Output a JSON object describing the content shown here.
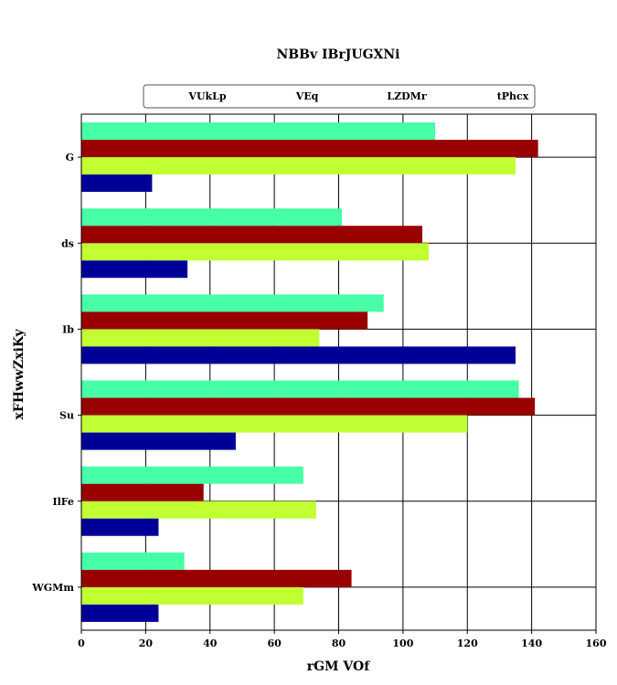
{
  "chart_data": {
    "type": "bar",
    "orientation": "horizontal",
    "title": "NBBv IBrJUGXNi",
    "xlabel": "rGM VOf",
    "ylabel": "xFHwwZxiKy",
    "xlim": [
      0,
      160
    ],
    "xticks": [
      0,
      20,
      40,
      60,
      80,
      100,
      120,
      140,
      160
    ],
    "grid": true,
    "legend": "top",
    "categories": [
      "G",
      "ds",
      "Ib",
      "Su",
      "IlFe",
      "WGMm"
    ],
    "series": [
      {
        "name": "VUkLp",
        "color": "#46ffa6",
        "values": [
          110,
          81,
          94,
          136,
          69,
          32
        ]
      },
      {
        "name": "VEq",
        "color": "#990000",
        "values": [
          142,
          106,
          89,
          141,
          38,
          84
        ]
      },
      {
        "name": "LZDMr",
        "color": "#c1ff33",
        "values": [
          135,
          108,
          74,
          120,
          73,
          69
        ]
      },
      {
        "name": "tPhcx",
        "color": "#000099",
        "values": [
          22,
          33,
          135,
          48,
          24,
          24
        ]
      }
    ]
  }
}
